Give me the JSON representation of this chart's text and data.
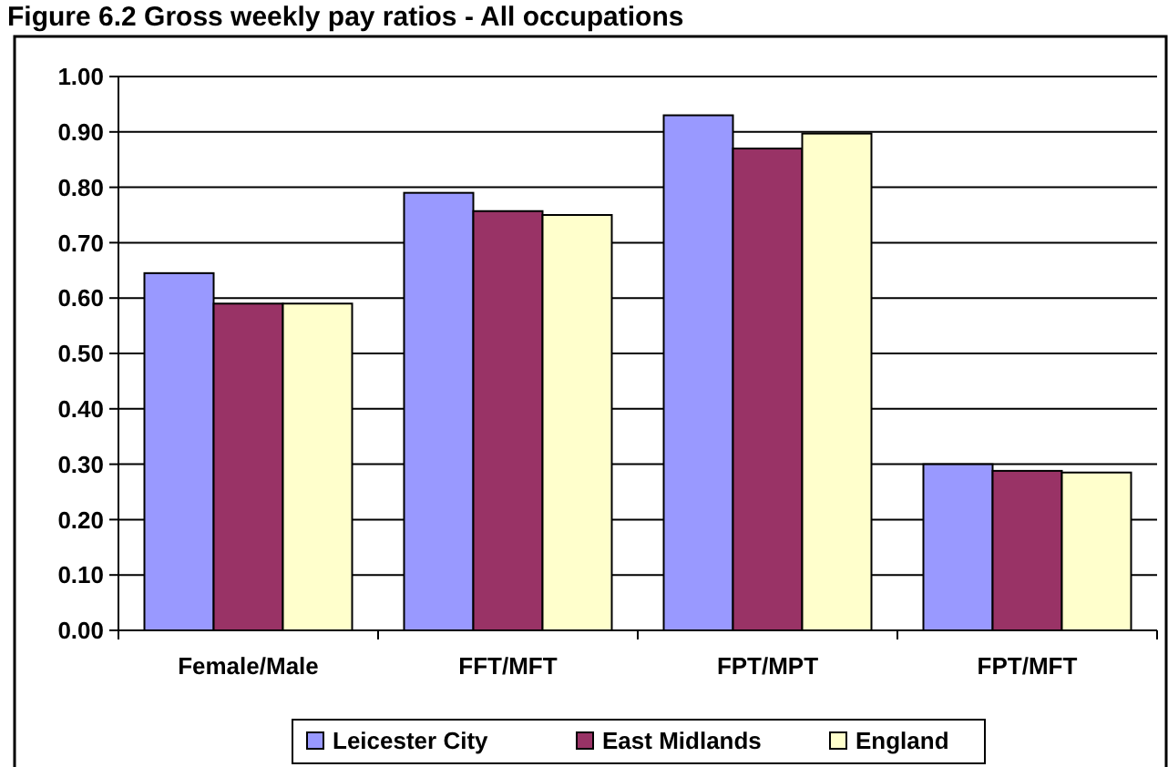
{
  "chart_data": {
    "type": "bar",
    "title": "Figure 6.2 Gross weekly pay ratios - All occupations",
    "categories": [
      "Female/Male",
      "FFT/MFT",
      "FPT/MPT",
      "FPT/MFT"
    ],
    "series": [
      {
        "name": "Leicester City",
        "color": "#9999ff",
        "values": [
          0.645,
          0.79,
          0.93,
          0.3
        ]
      },
      {
        "name": "East Midlands",
        "color": "#993366",
        "values": [
          0.59,
          0.757,
          0.87,
          0.288
        ]
      },
      {
        "name": "England",
        "color": "#ffffcc",
        "values": [
          0.59,
          0.75,
          0.897,
          0.285
        ]
      }
    ],
    "ylim": [
      0,
      1
    ],
    "yticks": [
      {
        "value": 0,
        "label": "0.00"
      },
      {
        "value": 0.1,
        "label": "0.10"
      },
      {
        "value": 0.2,
        "label": "0.20"
      },
      {
        "value": 0.3,
        "label": "0.30"
      },
      {
        "value": 0.4,
        "label": "0.40"
      },
      {
        "value": 0.5,
        "label": "0.50"
      },
      {
        "value": 0.6,
        "label": "0.60"
      },
      {
        "value": 0.7,
        "label": "0.70"
      },
      {
        "value": 0.8,
        "label": "0.80"
      },
      {
        "value": 0.9,
        "label": "0.90"
      },
      {
        "value": 1,
        "label": "1.00"
      }
    ],
    "grid": "y",
    "legend": "bottom"
  }
}
